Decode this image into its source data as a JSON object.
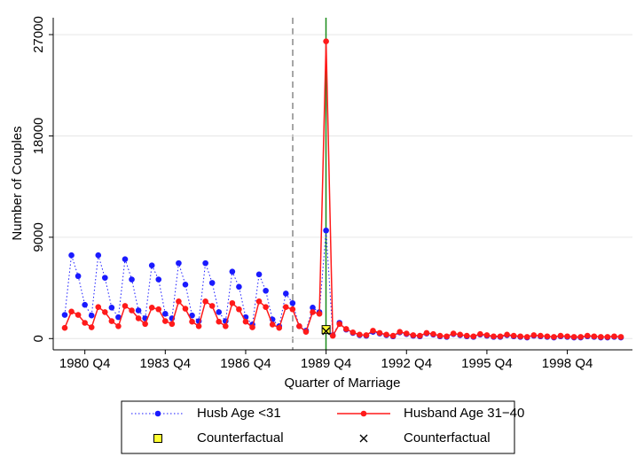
{
  "chart_data": {
    "type": "line",
    "y_label": "Number of Couples",
    "x_label": "Quarter of Marriage",
    "categories": [
      null,
      null,
      null,
      "1980 Q4",
      null,
      null,
      null,
      null,
      null,
      null,
      null,
      null,
      null,
      null,
      null,
      "1983 Q4",
      null,
      null,
      null,
      null,
      null,
      null,
      null,
      null,
      null,
      null,
      null,
      "1986 Q4",
      null,
      null,
      null,
      null,
      null,
      null,
      null,
      null,
      null,
      null,
      null,
      "1989 Q4",
      null,
      null,
      null,
      null,
      null,
      null,
      null,
      null,
      null,
      null,
      null,
      "1992 Q4",
      null,
      null,
      null,
      null,
      null,
      null,
      null,
      null,
      null,
      null,
      null,
      "1995 Q4",
      null,
      null,
      null,
      null,
      null,
      null,
      null,
      null,
      null,
      null,
      null,
      "1998 Q4",
      null,
      null,
      null,
      null,
      null,
      null,
      null,
      null
    ],
    "series": [
      {
        "name": "Husb Age <31",
        "color": "#1a1aff",
        "line_style": "dotted",
        "marker": "circle",
        "values": [
          2100,
          7400,
          5550,
          3000,
          2050,
          7400,
          5400,
          2750,
          1900,
          7050,
          5250,
          2500,
          1800,
          6500,
          5250,
          2200,
          1800,
          6700,
          4800,
          2050,
          1550,
          6700,
          4950,
          2350,
          1550,
          5950,
          4600,
          1900,
          1250,
          5700,
          4250,
          1700,
          1100,
          4000,
          3150,
          1100,
          700,
          2750,
          2350,
          9600,
          300,
          1400,
          800,
          500,
          300,
          250,
          600,
          450,
          300,
          200,
          550,
          400,
          250,
          200,
          450,
          350,
          200,
          150,
          400,
          300,
          200,
          150,
          350,
          250,
          150,
          150,
          300,
          200,
          150,
          100,
          250,
          200,
          150,
          100,
          200,
          150,
          100,
          100,
          200,
          150,
          100,
          100,
          150,
          100
        ]
      },
      {
        "name": "Husband Age 31−40",
        "color": "#ff1a1a",
        "line_style": "solid",
        "marker": "circle",
        "values": [
          950,
          2400,
          2100,
          1400,
          1000,
          2800,
          2350,
          1550,
          1100,
          2900,
          2500,
          1800,
          1300,
          2750,
          2600,
          1550,
          1300,
          3300,
          2650,
          1500,
          1100,
          3300,
          2900,
          1500,
          1100,
          3150,
          2600,
          1500,
          1000,
          3300,
          2800,
          1250,
          950,
          2800,
          2600,
          1100,
          600,
          2350,
          2200,
          26400,
          250,
          1300,
          850,
          550,
          350,
          300,
          700,
          500,
          350,
          250,
          600,
          450,
          300,
          250,
          500,
          400,
          250,
          200,
          450,
          350,
          250,
          200,
          400,
          300,
          200,
          200,
          350,
          250,
          200,
          150,
          300,
          250,
          200,
          150,
          250,
          200,
          150,
          150,
          250,
          200,
          150,
          150,
          200,
          150
        ]
      },
      {
        "name": "Counterfactual",
        "color": "#ffff33",
        "line_style": "none",
        "marker": "square",
        "values": [
          null,
          null,
          null,
          null,
          null,
          null,
          null,
          null,
          null,
          null,
          null,
          null,
          null,
          null,
          null,
          null,
          null,
          null,
          null,
          null,
          null,
          null,
          null,
          null,
          null,
          null,
          null,
          null,
          null,
          null,
          null,
          null,
          null,
          null,
          null,
          null,
          null,
          null,
          null,
          800,
          null,
          null,
          null,
          null,
          null,
          null,
          null,
          null,
          null,
          null,
          null,
          null,
          null,
          null,
          null,
          null,
          null,
          null,
          null,
          null,
          null,
          null,
          null,
          null,
          null,
          null,
          null,
          null,
          null,
          null,
          null,
          null,
          null,
          null,
          null,
          null,
          null,
          null,
          null,
          null,
          null,
          null,
          null,
          null
        ]
      },
      {
        "name": "Counterfactual",
        "color": "#000000",
        "line_style": "none",
        "marker": "x",
        "values": [
          null,
          null,
          null,
          null,
          null,
          null,
          null,
          null,
          null,
          null,
          null,
          null,
          null,
          null,
          null,
          null,
          null,
          null,
          null,
          null,
          null,
          null,
          null,
          null,
          null,
          null,
          null,
          null,
          null,
          null,
          null,
          null,
          null,
          null,
          null,
          null,
          null,
          null,
          null,
          650,
          null,
          null,
          null,
          null,
          null,
          null,
          null,
          null,
          null,
          null,
          null,
          null,
          null,
          null,
          null,
          null,
          null,
          null,
          null,
          null,
          null,
          null,
          null,
          null,
          null,
          null,
          null,
          null,
          null,
          null,
          null,
          null,
          null,
          null,
          null,
          null,
          null,
          null,
          null,
          null,
          null,
          null,
          null,
          null
        ]
      }
    ],
    "ylim": [
      -1000,
      28500
    ],
    "yticks": [
      0,
      9000,
      18000,
      27000
    ],
    "grid": true
  }
}
